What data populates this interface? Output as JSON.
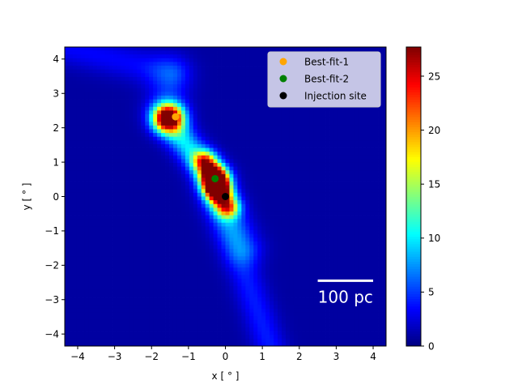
{
  "chart_data": {
    "type": "heatmap",
    "title": "",
    "xlabel": "x [$^\\circ$]",
    "ylabel": "y [$^\\circ$]",
    "xlabel_display": "x [ ° ]",
    "ylabel_display": "y [ ° ]",
    "xlim": [
      -4.35,
      4.35
    ],
    "ylim": [
      -4.35,
      4.35
    ],
    "x_ticks": [
      -4,
      -3,
      -2,
      -1,
      0,
      1,
      2,
      3,
      4
    ],
    "x_tick_labels": [
      "−4",
      "−3",
      "−2",
      "−1",
      "0",
      "1",
      "2",
      "3",
      "4"
    ],
    "y_ticks": [
      -4,
      -3,
      -2,
      -1,
      0,
      1,
      2,
      3,
      4
    ],
    "y_tick_labels": [
      "−4",
      "−3",
      "−2",
      "−1",
      "0",
      "1",
      "2",
      "3",
      "4"
    ],
    "grid": false,
    "colormap": "jet",
    "colorbar": {
      "range": [
        0,
        27.7
      ],
      "ticks": [
        0,
        5,
        10,
        15,
        20,
        25
      ],
      "tick_labels": [
        "0",
        "5",
        "10",
        "15",
        "20",
        "25"
      ]
    },
    "intensity_components": [
      {
        "kind": "blob",
        "x": -1.55,
        "y": 2.3,
        "sx": 0.28,
        "sy": 0.28,
        "amp": 26.5
      },
      {
        "kind": "blob",
        "x": -0.25,
        "y": 0.35,
        "sx": 0.22,
        "sy": 0.3,
        "amp": 27.5
      },
      {
        "kind": "segment",
        "x1": -1.5,
        "y1": 2.1,
        "x2": -0.3,
        "y2": 0.5,
        "width": 0.28,
        "amp": 9
      },
      {
        "kind": "segment",
        "x1": -0.55,
        "y1": 1.0,
        "x2": 0.05,
        "y2": -0.3,
        "width": 0.22,
        "amp": 18
      },
      {
        "kind": "segment",
        "x1": -0.1,
        "y1": -0.3,
        "x2": 1.2,
        "y2": -4.35,
        "width": 0.3,
        "amp": 3.2
      },
      {
        "kind": "segment",
        "x1": -1.6,
        "y1": 2.6,
        "x2": -1.5,
        "y2": 3.5,
        "width": 0.4,
        "amp": 3
      },
      {
        "kind": "segment",
        "x1": -1.5,
        "y1": 3.6,
        "x2": -4.35,
        "y2": 4.35,
        "width": 0.35,
        "amp": 2.5
      },
      {
        "kind": "segment",
        "x1": -0.3,
        "y1": 0.3,
        "x2": 0.5,
        "y2": -1.5,
        "width": 0.35,
        "amp": 4
      }
    ],
    "series": [
      {
        "name": "Best-fit-1",
        "x": [
          -1.35
        ],
        "y": [
          2.32
        ],
        "color": "#ffa500"
      },
      {
        "name": "Best-fit-2",
        "x": [
          -0.28
        ],
        "y": [
          0.52
        ],
        "color": "#008000"
      },
      {
        "name": "Injection site",
        "x": [
          0.0
        ],
        "y": [
          0.0
        ],
        "color": "#000000"
      }
    ],
    "legend": {
      "placement": "upper right"
    },
    "scalebar": {
      "label": "100 pc",
      "x_start": 2.5,
      "x_end": 4.0,
      "y": -2.45,
      "color": "#ffffff"
    }
  }
}
